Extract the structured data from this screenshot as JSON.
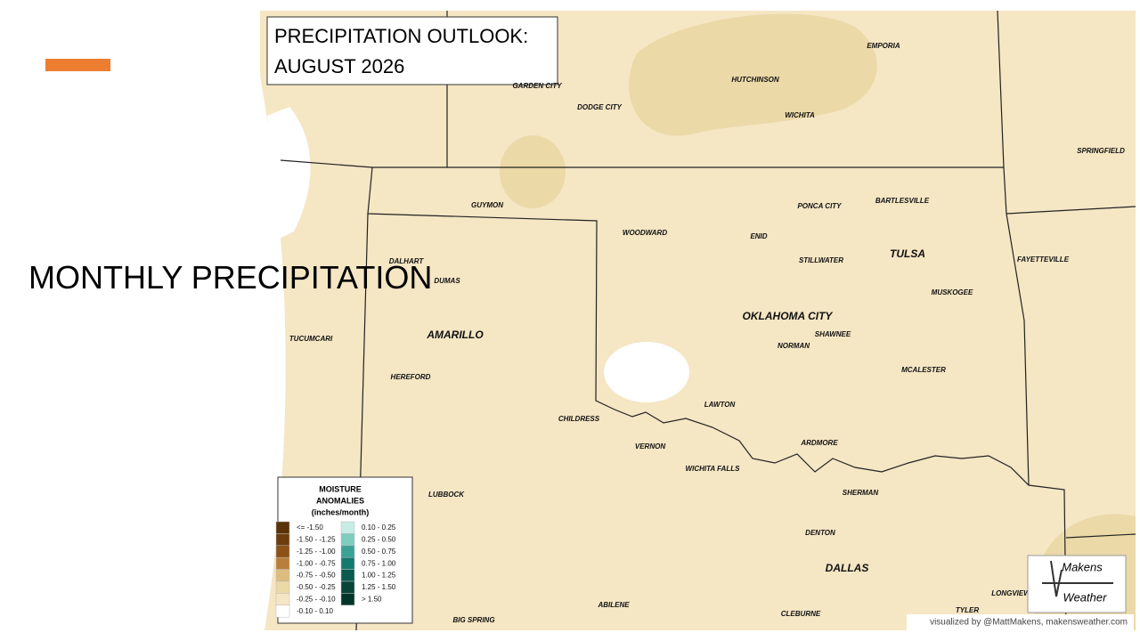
{
  "slide": {
    "title": "MONTHLY PRECIPITATION"
  },
  "map": {
    "title_lines": [
      "PRECIPITATION OUTLOOK:",
      "AUGUST 2026"
    ],
    "cities": [
      "GARDEN CITY",
      "DODGE CITY",
      "HUTCHINSON",
      "EMPORIA",
      "WICHITA",
      "SPRINGFIELD",
      "GUYMON",
      "WOODWARD",
      "ENID",
      "PONCA CITY",
      "BARTLESVILLE",
      "STILLWATER",
      "TULSA",
      "FAYETTEVILLE",
      "DALHART",
      "DUMAS",
      "MUSKOGEE",
      "OKLAHOMA CITY",
      "SHAWNEE",
      "NORMAN",
      "TUCUMCARI",
      "AMARILLO",
      "HEREFORD",
      "MCALESTER",
      "LAWTON",
      "CHILDRESS",
      "VERNON",
      "ARDMORE",
      "WICHITA FALLS",
      "SHERMAN",
      "LUBBOCK",
      "DENTON",
      "DALLAS",
      "LONGVIEW",
      "ABILENE",
      "TYLER",
      "CLEBURNE",
      "BIG SPRING"
    ],
    "legend": {
      "title_lines": [
        "MOISTURE",
        "ANOMALIES",
        "(inches/month)"
      ],
      "entries": [
        {
          "label": "<= -1.50",
          "color": "#5c3208"
        },
        {
          "label": "-1.50 - -1.25",
          "color": "#6e3d0c"
        },
        {
          "label": "-1.25 - -1.00",
          "color": "#8c5116"
        },
        {
          "label": "-1.00 - -0.75",
          "color": "#b97f3a"
        },
        {
          "label": "-0.75 - -0.50",
          "color": "#ddbd7e"
        },
        {
          "label": "-0.50 - -0.25",
          "color": "#ecd9a8"
        },
        {
          "label": "-0.25 - -0.10",
          "color": "#f5e6c4"
        },
        {
          "label": "-0.10 - 0.10",
          "color": "#ffffff"
        },
        {
          "label": "0.10 - 0.25",
          "color": "#c7ebe5"
        },
        {
          "label": "0.25 - 0.50",
          "color": "#7fcdbf"
        },
        {
          "label": "0.50 - 0.75",
          "color": "#3aa396"
        },
        {
          "label": "0.75 - 1.00",
          "color": "#137a70"
        },
        {
          "label": "1.00 - 1.25",
          "color": "#0a5a4e"
        },
        {
          "label": "1.25 - 1.50",
          "color": "#064538"
        },
        {
          "label": "> 1.50",
          "color": "#03362a"
        }
      ]
    },
    "logo": [
      "Makens",
      "Weather"
    ],
    "credit": "visualized by @MattMakens, makensweather.com"
  }
}
